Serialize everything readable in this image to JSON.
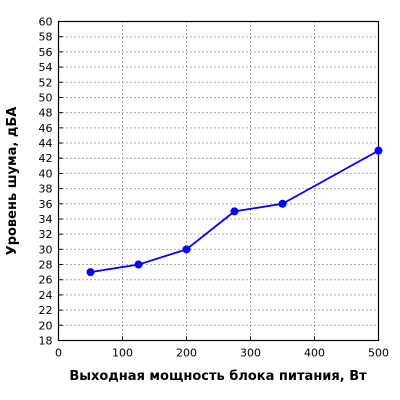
{
  "chart_data": {
    "type": "line",
    "title": "",
    "xlabel": "Выходная мощность блока питания, Вт",
    "ylabel": "Уровень шума, дБА",
    "xlim": [
      0,
      500
    ],
    "ylim": [
      18,
      60
    ],
    "x_ticks": [
      0,
      100,
      200,
      300,
      400,
      500
    ],
    "y_ticks": [
      18,
      20,
      22,
      24,
      26,
      28,
      30,
      32,
      34,
      36,
      38,
      40,
      42,
      44,
      46,
      48,
      50,
      52,
      54,
      56,
      58,
      60
    ],
    "grid": true,
    "legend": "none",
    "series": [
      {
        "color": "#0000ff",
        "x": [
          50,
          125,
          200,
          275,
          350,
          500
        ],
        "y": [
          27,
          28,
          30,
          35,
          36,
          43
        ]
      }
    ]
  }
}
